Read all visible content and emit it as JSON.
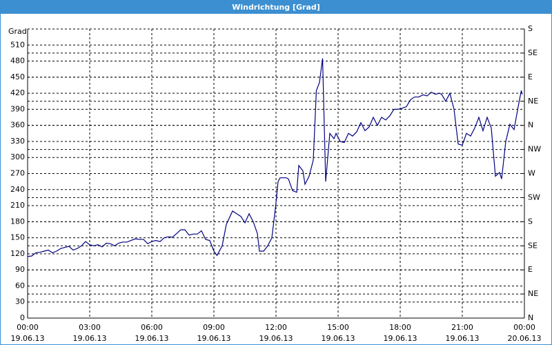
{
  "window_title": "Windrichtung [Grad]",
  "chart_data": {
    "type": "line",
    "y_axis_label": "Grad",
    "xlim": [
      0,
      24
    ],
    "xticks": [
      {
        "value": 0,
        "label": "00:00",
        "date": "19.06.13"
      },
      {
        "value": 3,
        "label": "03:00",
        "date": "19.06.13"
      },
      {
        "value": 6,
        "label": "06:00",
        "date": "19.06.13"
      },
      {
        "value": 9,
        "label": "09:00",
        "date": "19.06.13"
      },
      {
        "value": 12,
        "label": "12:00",
        "date": "19.06.13"
      },
      {
        "value": 15,
        "label": "15:00",
        "date": "19.06.13"
      },
      {
        "value": 18,
        "label": "18:00",
        "date": "19.06.13"
      },
      {
        "value": 21,
        "label": "21:00",
        "date": "19.06.13"
      },
      {
        "value": 24,
        "label": "00:00",
        "date": "20.06.13"
      }
    ],
    "ylim": [
      0,
      540
    ],
    "yticks": [
      0,
      30,
      60,
      90,
      120,
      150,
      180,
      210,
      240,
      270,
      300,
      330,
      360,
      390,
      420,
      450,
      480,
      510
    ],
    "y2lim": [
      0,
      540
    ],
    "y2ticks": [
      {
        "value": 0,
        "label": "N"
      },
      {
        "value": 45,
        "label": "NE"
      },
      {
        "value": 90,
        "label": "E"
      },
      {
        "value": 135,
        "label": "SE"
      },
      {
        "value": 180,
        "label": "S"
      },
      {
        "value": 225,
        "label": "SW"
      },
      {
        "value": 270,
        "label": "W"
      },
      {
        "value": 315,
        "label": "NW"
      },
      {
        "value": 360,
        "label": "N"
      },
      {
        "value": 405,
        "label": "NE"
      },
      {
        "value": 450,
        "label": "E"
      },
      {
        "value": 495,
        "label": "SE"
      },
      {
        "value": 540,
        "label": "S"
      }
    ],
    "grid": true,
    "series": [
      {
        "color": "#000080",
        "x": [
          0,
          0.2,
          0.4,
          0.6,
          0.8,
          1.0,
          1.2,
          1.4,
          1.6,
          1.8,
          2.0,
          2.2,
          2.4,
          2.6,
          2.8,
          3.0,
          3.2,
          3.4,
          3.6,
          3.8,
          4.0,
          4.2,
          4.4,
          4.6,
          4.8,
          5.0,
          5.2,
          5.4,
          5.6,
          5.8,
          6.0,
          6.2,
          6.4,
          6.6,
          6.8,
          7.0,
          7.2,
          7.4,
          7.6,
          7.8,
          8.0,
          8.2,
          8.4,
          8.6,
          8.8,
          9.0,
          9.15,
          9.4,
          9.6,
          9.9,
          10.1,
          10.3,
          10.5,
          10.7,
          10.9,
          11.1,
          11.2,
          11.4,
          11.6,
          11.8,
          12.0,
          12.1,
          12.2,
          12.5,
          12.6,
          12.8,
          13.0,
          13.1,
          13.3,
          13.4,
          13.6,
          13.8,
          13.95,
          14.1,
          14.25,
          14.4,
          14.6,
          14.8,
          14.9,
          15.1,
          15.3,
          15.5,
          15.7,
          15.9,
          16.1,
          16.3,
          16.5,
          16.7,
          16.9,
          17.1,
          17.3,
          17.5,
          17.7,
          17.9,
          18.1,
          18.3,
          18.5,
          18.7,
          18.9,
          19.1,
          19.3,
          19.5,
          19.7,
          19.9,
          20.0,
          20.2,
          20.4,
          20.6,
          20.8,
          21.0,
          21.2,
          21.4,
          21.6,
          21.8,
          22.0,
          22.2,
          22.4,
          22.6,
          22.8,
          22.9,
          23.1,
          23.3,
          23.5,
          23.7,
          23.85,
          23.9
        ],
        "values": [
          115,
          116,
          122,
          123,
          125,
          127,
          122,
          125,
          130,
          132,
          134,
          127,
          130,
          135,
          143,
          137,
          135,
          137,
          133,
          140,
          139,
          135,
          140,
          142,
          142,
          145,
          148,
          147,
          147,
          139,
          143,
          145,
          143,
          150,
          152,
          151,
          158,
          165,
          165,
          155,
          157,
          157,
          163,
          147,
          145,
          125,
          117,
          135,
          175,
          200,
          195,
          190,
          178,
          195,
          180,
          158,
          125,
          125,
          135,
          150,
          215,
          255,
          262,
          262,
          260,
          238,
          235,
          285,
          275,
          250,
          265,
          295,
          425,
          440,
          485,
          255,
          345,
          335,
          345,
          330,
          328,
          345,
          340,
          348,
          365,
          350,
          357,
          375,
          360,
          375,
          370,
          378,
          390,
          390,
          392,
          395,
          408,
          413,
          413,
          417,
          415,
          422,
          418,
          420,
          418,
          405,
          420,
          390,
          325,
          323,
          345,
          340,
          355,
          375,
          350,
          375,
          355,
          265,
          272,
          260,
          330,
          362,
          352,
          395,
          425,
          418
        ]
      }
    ]
  }
}
